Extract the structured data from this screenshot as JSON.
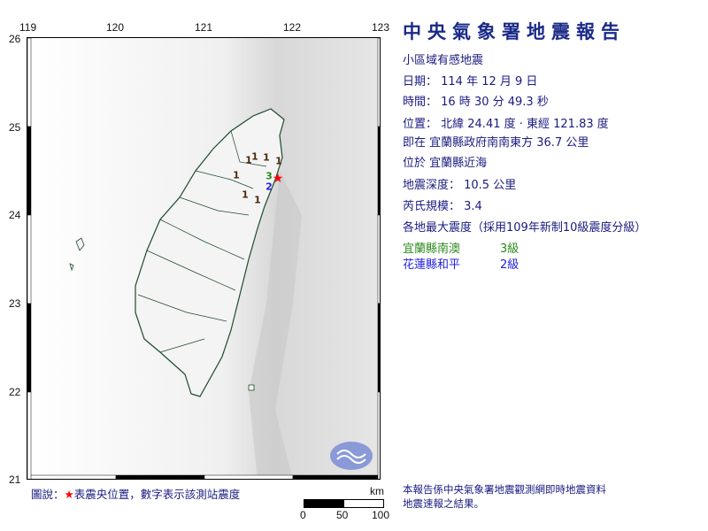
{
  "header": {
    "title": "中央氣象署地震報告"
  },
  "report": {
    "type": "小區域有感地震",
    "date": "日期： 114 年 12 月 9 日",
    "time": "時間： 16 時 30 分 49.3 秒",
    "location": "位置： 北緯 24.41 度 · 東經 121.83 度",
    "relative": "即在 宜蘭縣政府南南東方 36.7 公里",
    "area": "位於 宜蘭縣近海",
    "depth": "地震深度： 10.5 公里",
    "magnitude": "芮氏規模： 3.4",
    "intensity_heading": "各地最大震度（採用109年新制10級震度分級）",
    "intensities": [
      {
        "place": "宜蘭縣南澳",
        "level": "3級",
        "color": "#2a8a1a"
      },
      {
        "place": "花蓮縣和平",
        "level": "2級",
        "color": "#2020e0"
      }
    ]
  },
  "map": {
    "lon_ticks": [
      "119",
      "120",
      "121",
      "122",
      "123"
    ],
    "lat_ticks": [
      "26",
      "25",
      "24",
      "23",
      "22",
      "21"
    ],
    "epicenter": {
      "lat": 24.41,
      "lon": 121.83,
      "color": "#ff0000"
    },
    "stations": [
      {
        "label": "1",
        "lon": 121.5,
        "lat": 24.62,
        "color": "#4a2a10"
      },
      {
        "label": "1",
        "lon": 121.57,
        "lat": 24.66,
        "color": "#4a2a10"
      },
      {
        "label": "1",
        "lon": 121.7,
        "lat": 24.65,
        "color": "#4a2a10"
      },
      {
        "label": "1",
        "lon": 121.84,
        "lat": 24.61,
        "color": "#4a2a10"
      },
      {
        "label": "1",
        "lon": 121.36,
        "lat": 24.45,
        "color": "#4a2a10"
      },
      {
        "label": "1",
        "lon": 121.46,
        "lat": 24.23,
        "color": "#4a2a10"
      },
      {
        "label": "1",
        "lon": 121.6,
        "lat": 24.17,
        "color": "#4a2a10"
      },
      {
        "label": "3",
        "lon": 121.73,
        "lat": 24.44,
        "color": "#2a8a1a"
      },
      {
        "label": "2",
        "lon": 121.73,
        "lat": 24.32,
        "color": "#2020e0"
      }
    ],
    "scale": {
      "unit": "km",
      "ticks": [
        "0",
        "50",
        "100"
      ]
    }
  },
  "legend": {
    "prefix": "圖說：",
    "star": "★",
    "text": "表震央位置，數字表示該測站震度"
  },
  "footer": {
    "line1": "本報告係中央氣象署地震觀測網即時地震資料",
    "line2": "地震速報之結果。"
  }
}
